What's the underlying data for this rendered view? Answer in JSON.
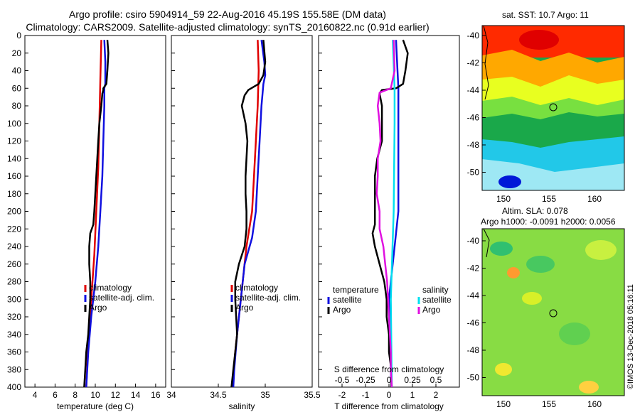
{
  "header": {
    "line1": "Argo profile: csiro 5904914_59 22-Aug-2016 45.19S 155.58E (DM data)",
    "line2": "Climatology: CARS2009. Satellite-adjusted climatology: synTS_20160822.nc (0.91d earlier)"
  },
  "colors": {
    "climatology": "#e00000",
    "satellite": "#1010e0",
    "argo": "#000000",
    "s_satellite": "#00e0f0",
    "s_argo": "#e010e0"
  },
  "chart_data": [
    {
      "type": "line",
      "title": "",
      "xlabel": "temperature (deg C)",
      "ylabel": "depth",
      "xlim": [
        3,
        17
      ],
      "ylim": [
        400,
        0
      ],
      "xticks": [
        "4",
        "6",
        "8",
        "10",
        "12",
        "14",
        "16"
      ],
      "yticks": [
        "0",
        "20",
        "40",
        "60",
        "80",
        "100",
        "120",
        "140",
        "160",
        "180",
        "200",
        "220",
        "240",
        "260",
        "280",
        "300",
        "320",
        "340",
        "360",
        "380",
        "400"
      ],
      "legend": [
        "climatology",
        "satellite-adj. clim.",
        "Argo"
      ],
      "series": [
        {
          "name": "climatology",
          "color": "red",
          "depth": [
            5,
            50,
            100,
            150,
            200,
            250,
            300,
            350,
            400
          ],
          "values": [
            10.6,
            10.5,
            10.4,
            10.3,
            10.1,
            9.9,
            9.6,
            9.3,
            9.1
          ]
        },
        {
          "name": "satellite-adj. clim.",
          "color": "blue",
          "depth": [
            5,
            30,
            55,
            60,
            80,
            120,
            160,
            200,
            240,
            280,
            320,
            360,
            400
          ],
          "values": [
            10.9,
            11.0,
            11.0,
            10.9,
            10.9,
            10.8,
            10.7,
            10.5,
            10.3,
            10.0,
            9.6,
            9.3,
            9.1
          ]
        },
        {
          "name": "Argo",
          "color": "black",
          "depth": [
            5,
            20,
            40,
            55,
            60,
            62,
            66,
            80,
            100,
            120,
            140,
            160,
            180,
            200,
            215,
            225,
            240,
            260,
            280,
            300,
            320,
            340,
            360,
            380,
            400
          ],
          "values": [
            11.2,
            11.3,
            11.2,
            11.1,
            10.8,
            10.8,
            10.7,
            10.6,
            10.4,
            10.3,
            10.2,
            10.1,
            10.0,
            9.9,
            9.8,
            9.5,
            9.4,
            9.4,
            9.5,
            9.5,
            9.4,
            9.3,
            9.1,
            9.0,
            8.9
          ]
        }
      ]
    },
    {
      "type": "line",
      "title": "",
      "xlabel": "salinity",
      "ylabel": "depth",
      "xlim": [
        34,
        35.5
      ],
      "ylim": [
        400,
        0
      ],
      "xticks": [
        "34",
        "34.5",
        "35",
        "35.5"
      ],
      "legend": [
        "climatology",
        "satellite-adj. clim.",
        "Argo"
      ],
      "series": [
        {
          "name": "climatology",
          "color": "red",
          "depth": [
            5,
            40,
            80,
            120,
            160,
            200,
            240,
            280,
            320,
            360,
            400
          ],
          "values": [
            34.92,
            34.93,
            34.92,
            34.9,
            34.88,
            34.86,
            34.8,
            34.76,
            34.72,
            34.68,
            34.65
          ]
        },
        {
          "name": "satellite-adj. clim.",
          "color": "blue",
          "depth": [
            5,
            30,
            45,
            55,
            80,
            120,
            160,
            200,
            230,
            260,
            300,
            340,
            380,
            400
          ],
          "values": [
            34.96,
            34.99,
            35.0,
            34.98,
            34.96,
            34.94,
            34.92,
            34.9,
            34.86,
            34.78,
            34.74,
            34.7,
            34.67,
            34.66
          ]
        },
        {
          "name": "Argo",
          "color": "black",
          "depth": [
            5,
            30,
            45,
            55,
            62,
            68,
            80,
            100,
            120,
            140,
            160,
            180,
            200,
            220,
            240,
            260,
            280,
            300,
            320,
            340,
            360,
            380,
            400
          ],
          "values": [
            34.98,
            35.0,
            34.98,
            34.93,
            34.82,
            34.78,
            34.75,
            34.79,
            34.81,
            34.8,
            34.79,
            34.79,
            34.8,
            34.8,
            34.78,
            34.72,
            34.68,
            34.68,
            34.69,
            34.7,
            34.68,
            34.66,
            34.64
          ]
        }
      ]
    },
    {
      "type": "line",
      "title": "S difference from climatology",
      "xlabel": "T difference from climatology",
      "ylabel": "depth",
      "xlim": [
        -3,
        3
      ],
      "ylim": [
        400,
        0
      ],
      "xticks": [
        "-2",
        "-1",
        "0",
        "1",
        "2"
      ],
      "s_axis_ticks": [
        "-0.5",
        "-0.25",
        "0",
        "0.25",
        "0.5"
      ],
      "s_axis_range": [
        -0.75,
        0.75
      ],
      "legend_temperature": [
        "temperature",
        "satellite",
        "Argo"
      ],
      "legend_salinity": [
        "salinity",
        "satellite",
        "Argo"
      ],
      "series": [
        {
          "name": "temperature satellite",
          "color": "blue",
          "depth": [
            5,
            60,
            100,
            200,
            300,
            400
          ],
          "values": [
            0.3,
            0.4,
            0.4,
            0.4,
            0.0,
            0.1
          ]
        },
        {
          "name": "temperature Argo",
          "color": "black",
          "depth": [
            5,
            20,
            40,
            55,
            60,
            62,
            66,
            80,
            100,
            120,
            140,
            160,
            180,
            200,
            215,
            225,
            240,
            260,
            280,
            300,
            320,
            340,
            360,
            380,
            400
          ],
          "values": [
            0.6,
            0.8,
            0.7,
            0.6,
            0.3,
            -0.3,
            -0.4,
            -0.3,
            -0.3,
            -0.3,
            -0.5,
            -0.6,
            -0.6,
            -0.6,
            -0.6,
            -0.7,
            -0.6,
            -0.4,
            -0.2,
            -0.1,
            -0.1,
            0.0,
            0.0,
            0.1,
            0.1
          ]
        },
        {
          "name": "salinity satellite",
          "color": "cyan",
          "depth": [
            5,
            60,
            100,
            200,
            300,
            400
          ],
          "values": [
            0.04,
            0.06,
            0.06,
            0.05,
            0.02,
            0.03
          ]
        },
        {
          "name": "salinity Argo",
          "color": "magenta",
          "depth": [
            5,
            40,
            60,
            65,
            80,
            100,
            120,
            140,
            160,
            180,
            200,
            220,
            240,
            260,
            280,
            300,
            320,
            340,
            360,
            380,
            400
          ],
          "values": [
            0.05,
            0.06,
            0.02,
            -0.1,
            -0.12,
            -0.1,
            -0.09,
            -0.12,
            -0.12,
            -0.13,
            -0.1,
            -0.1,
            -0.06,
            -0.04,
            -0.02,
            -0.01,
            0.0,
            0.01,
            0.02,
            0.02,
            0.03
          ]
        }
      ]
    }
  ],
  "maps": {
    "top": {
      "title": "sat. SST: 10.7 Argo: 11",
      "lat_ticks": [
        "-40",
        "-42",
        "-44",
        "-46",
        "-48",
        "-50"
      ],
      "lon_ticks": [
        "150",
        "155",
        "160"
      ]
    },
    "bottom": {
      "title1": "Altim. SLA: 0.078",
      "title2": "Argo h1000: -0.0091 h2000: 0.0056",
      "lat_ticks": [
        "-40",
        "-42",
        "-44",
        "-46",
        "-48",
        "-50"
      ],
      "lon_ticks": [
        "150",
        "155",
        "160"
      ]
    }
  },
  "credit": "©IMOS 13-Dec-2018 05:16:11"
}
